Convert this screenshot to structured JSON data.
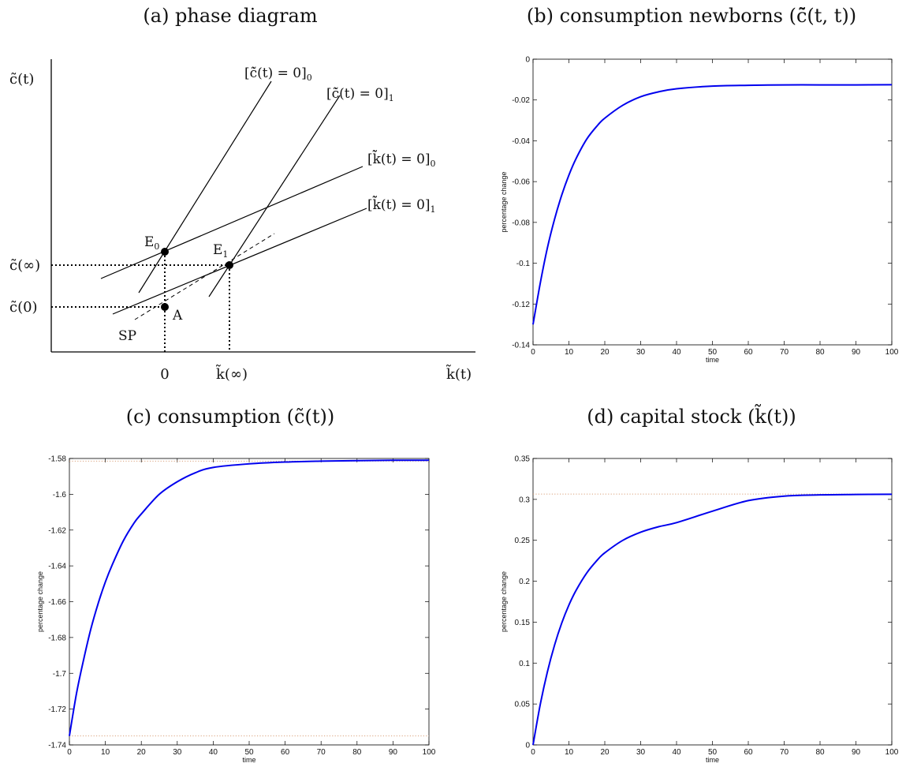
{
  "figure": {
    "titles": {
      "a": "(a) phase diagram",
      "b": "(b) consumption newborns (c̃̄(t, t))",
      "c": "(c) consumption (c̃(t))",
      "d": "(d) capital stock (k̃(t))"
    }
  },
  "phase": {
    "y_axis_label": "c̃(t)",
    "x_axis_label": "k̃(t)",
    "y_ticks": [
      "c̃(∞)",
      "c̃(0)"
    ],
    "x_ticks": [
      "0",
      "k̃(∞)"
    ],
    "curves": {
      "cdot0": "[c̃̇(t) = 0]",
      "cdot0_sub": "0",
      "cdot1": "[c̃̇(t) = 0]",
      "cdot1_sub": "1",
      "kdot0": "[k̃̇(t) = 0]",
      "kdot0_sub": "0",
      "kdot1": "[k̃̇(t) = 0]",
      "kdot1_sub": "1"
    },
    "points": {
      "e0": "E",
      "e0_sub": "0",
      "e1": "E",
      "e1_sub": "1",
      "a": "A",
      "sp": "SP"
    }
  },
  "chart_data": [
    {
      "panel": "b",
      "type": "line",
      "xlabel": "time",
      "ylabel": "percentage change",
      "xlim": [
        0,
        100
      ],
      "ylim": [
        -0.14,
        0
      ],
      "xticks": [
        0,
        10,
        20,
        30,
        40,
        50,
        60,
        70,
        80,
        90,
        100
      ],
      "yticks": [
        -0.14,
        -0.12,
        -0.1,
        -0.08,
        -0.06,
        -0.04,
        -0.02,
        0
      ],
      "ytick_labels": [
        "-0.14",
        "-0.12",
        "-0.1",
        "-0.08",
        "-0.06",
        "-0.04",
        "-0.02",
        "0"
      ],
      "color": "#0000ee",
      "x": [
        0,
        2,
        4,
        6,
        8,
        10,
        12,
        15,
        18,
        20,
        25,
        30,
        35,
        40,
        50,
        60,
        70,
        80,
        90,
        100
      ],
      "y": [
        -0.13,
        -0.1099,
        -0.0925,
        -0.0784,
        -0.0666,
        -0.0568,
        -0.0487,
        -0.0391,
        -0.0324,
        -0.0289,
        -0.0226,
        -0.0184,
        -0.016,
        -0.0145,
        -0.0132,
        -0.0128,
        -0.0126,
        -0.0126,
        -0.0126,
        -0.0125
      ],
      "reference_lines": []
    },
    {
      "panel": "c",
      "type": "line",
      "xlabel": "time",
      "ylabel": "percentage change",
      "xlim": [
        0,
        100
      ],
      "ylim": [
        -1.74,
        -1.58
      ],
      "xticks": [
        0,
        10,
        20,
        30,
        40,
        50,
        60,
        70,
        80,
        90,
        100
      ],
      "yticks": [
        -1.74,
        -1.72,
        -1.7,
        -1.68,
        -1.66,
        -1.64,
        -1.62,
        -1.6,
        -1.58
      ],
      "ytick_labels": [
        "-1.74",
        "-1.72",
        "-1.7",
        "-1.68",
        "-1.66",
        "-1.64",
        "-1.62",
        "-1.6",
        "-1.58"
      ],
      "color": "#0000ee",
      "x": [
        0,
        2,
        4,
        6,
        8,
        10,
        12,
        15,
        18,
        20,
        25,
        30,
        35,
        40,
        50,
        60,
        70,
        80,
        90,
        100
      ],
      "y": [
        -1.735,
        -1.711,
        -1.692,
        -1.675,
        -1.661,
        -1.649,
        -1.639,
        -1.626,
        -1.616,
        -1.611,
        -1.6,
        -1.593,
        -1.588,
        -1.585,
        -1.583,
        -1.582,
        -1.5815,
        -1.5812,
        -1.581,
        -1.581
      ],
      "reference_lines": [
        -1.5815,
        -1.735
      ]
    },
    {
      "panel": "d",
      "type": "line",
      "xlabel": "time",
      "ylabel": "percentage change",
      "xlim": [
        0,
        100
      ],
      "ylim": [
        0,
        0.35
      ],
      "xticks": [
        0,
        10,
        20,
        30,
        40,
        50,
        60,
        70,
        80,
        90,
        100
      ],
      "yticks": [
        0,
        0.05,
        0.1,
        0.15,
        0.2,
        0.25,
        0.3,
        0.35
      ],
      "ytick_labels": [
        "0",
        "0.05",
        "0.1",
        "0.15",
        "0.2",
        "0.25",
        "0.3",
        "0.35"
      ],
      "color": "#0000ee",
      "x": [
        0,
        2,
        4,
        6,
        8,
        10,
        12,
        15,
        18,
        20,
        25,
        30,
        35,
        40,
        50,
        60,
        70,
        80,
        90,
        100
      ],
      "y": [
        0.0,
        0.0491,
        0.0892,
        0.122,
        0.1489,
        0.1709,
        0.1889,
        0.2103,
        0.2263,
        0.2347,
        0.2499,
        0.2599,
        0.2666,
        0.2716,
        0.2856,
        0.2985,
        0.304,
        0.3055,
        0.306,
        0.3063
      ],
      "reference_lines": [
        0.3065
      ]
    }
  ]
}
